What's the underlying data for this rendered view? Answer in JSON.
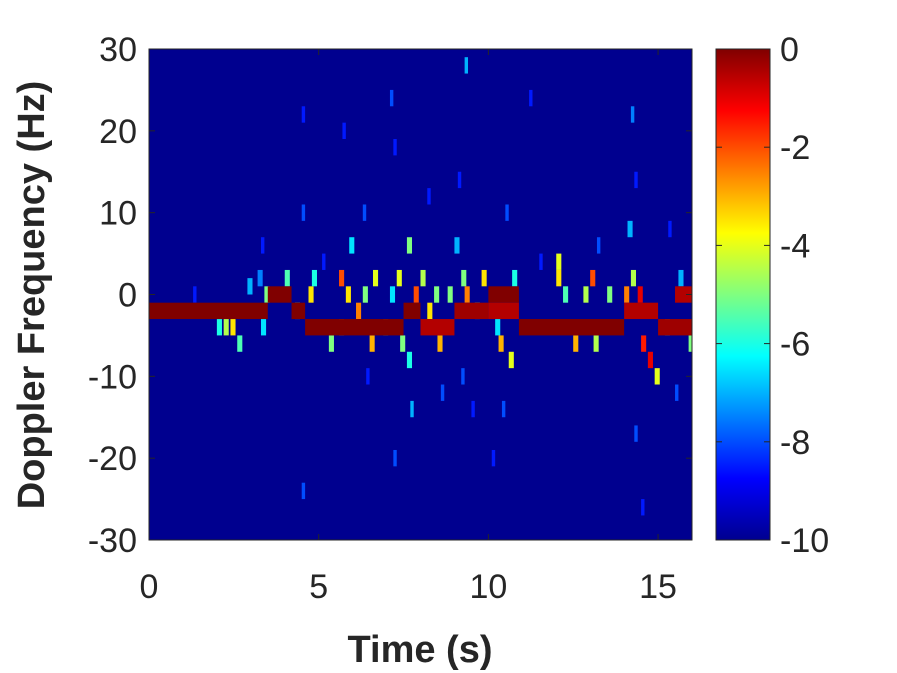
{
  "chart_data": {
    "type": "heatmap",
    "title": "",
    "xlabel": "Time (s)",
    "ylabel": "Doppler Frequency (Hz)",
    "xlim": [
      0,
      16
    ],
    "ylim": [
      -30,
      30
    ],
    "xticks": [
      0,
      5,
      10,
      15
    ],
    "xtick_labels": [
      "0",
      "5",
      "10",
      "15"
    ],
    "yticks": [
      30,
      20,
      10,
      0,
      -10,
      -20,
      -30
    ],
    "ytick_labels": [
      "30",
      "20",
      "10",
      "0",
      "-10",
      "-20",
      "-30"
    ],
    "colormap": "jet",
    "color_range": [
      -10,
      0
    ],
    "colorbar_ticks": [
      0,
      -2,
      -4,
      -6,
      -8,
      -10
    ],
    "colorbar_tick_labels": [
      "0",
      "-2",
      "-4",
      "-6",
      "-8",
      "-10"
    ],
    "background_value": -10,
    "bands": [
      {
        "t": [
          0,
          3.5
        ],
        "f": [
          -3,
          -1
        ],
        "value": 0
      },
      {
        "t": [
          3.5,
          4.2
        ],
        "f": [
          -1,
          1
        ],
        "value": 0
      },
      {
        "t": [
          4.2,
          4.6
        ],
        "f": [
          -3,
          -1
        ],
        "value": 0
      },
      {
        "t": [
          4.6,
          7.5
        ],
        "f": [
          -5,
          -3
        ],
        "value": 0
      },
      {
        "t": [
          7.5,
          8.0
        ],
        "f": [
          -3,
          -1
        ],
        "value": 0
      },
      {
        "t": [
          8.0,
          9.0
        ],
        "f": [
          -5,
          -3
        ],
        "value": -0.5
      },
      {
        "t": [
          9.0,
          10.0
        ],
        "f": [
          -3,
          -1
        ],
        "value": -0.3
      },
      {
        "t": [
          10.0,
          10.9
        ],
        "f": [
          -1,
          1
        ],
        "value": 0
      },
      {
        "t": [
          10.0,
          10.9
        ],
        "f": [
          -3,
          -1
        ],
        "value": -0.5
      },
      {
        "t": [
          10.9,
          14.0
        ],
        "f": [
          -5,
          -3
        ],
        "value": 0
      },
      {
        "t": [
          14.0,
          15.0
        ],
        "f": [
          -3,
          -1
        ],
        "value": -0.5
      },
      {
        "t": [
          15.0,
          16.0
        ],
        "f": [
          -5,
          -3
        ],
        "value": -0.3
      },
      {
        "t": [
          15.5,
          16.0
        ],
        "f": [
          -1,
          1
        ],
        "value": -0.5
      }
    ],
    "scatter_cells": [
      {
        "t": 2.0,
        "f": -4,
        "value": -6
      },
      {
        "t": 2.2,
        "f": -4,
        "value": -4.5
      },
      {
        "t": 2.4,
        "f": -4,
        "value": -3.5
      },
      {
        "t": 2.6,
        "f": -6,
        "value": -5.5
      },
      {
        "t": 2.9,
        "f": 1,
        "value": -7
      },
      {
        "t": 3.2,
        "f": 2,
        "value": -7.5
      },
      {
        "t": 3.3,
        "f": -4,
        "value": -6.5
      },
      {
        "t": 3.4,
        "f": 0,
        "value": -5
      },
      {
        "t": 4.0,
        "f": 2,
        "value": -5.5
      },
      {
        "t": 4.3,
        "f": -2,
        "value": -4
      },
      {
        "t": 4.7,
        "f": 0,
        "value": -3.5
      },
      {
        "t": 4.8,
        "f": 2,
        "value": -6
      },
      {
        "t": 5.3,
        "f": -6,
        "value": -5
      },
      {
        "t": 5.6,
        "f": 2,
        "value": -2
      },
      {
        "t": 5.6,
        "f": -4,
        "value": -3
      },
      {
        "t": 5.8,
        "f": 0,
        "value": -3.5
      },
      {
        "t": 5.9,
        "f": 6,
        "value": -6.5
      },
      {
        "t": 6.1,
        "f": -2,
        "value": -2.5
      },
      {
        "t": 6.3,
        "f": 0,
        "value": -5
      },
      {
        "t": 6.5,
        "f": -6,
        "value": -3
      },
      {
        "t": 6.6,
        "f": 2,
        "value": -4
      },
      {
        "t": 6.9,
        "f": -4,
        "value": -4.5
      },
      {
        "t": 7.1,
        "f": 0,
        "value": -6.5
      },
      {
        "t": 7.3,
        "f": 2,
        "value": -4
      },
      {
        "t": 7.4,
        "f": -6,
        "value": -5
      },
      {
        "t": 7.6,
        "f": -8,
        "value": -6
      },
      {
        "t": 7.6,
        "f": 6,
        "value": -5
      },
      {
        "t": 7.8,
        "f": 0,
        "value": -2
      },
      {
        "t": 8.0,
        "f": 2,
        "value": -4.5
      },
      {
        "t": 8.2,
        "f": -2,
        "value": -3.5
      },
      {
        "t": 8.4,
        "f": 0,
        "value": -5
      },
      {
        "t": 8.5,
        "f": -6,
        "value": -3
      },
      {
        "t": 8.8,
        "f": 0,
        "value": -5
      },
      {
        "t": 9.0,
        "f": 6,
        "value": -7
      },
      {
        "t": 9.2,
        "f": 2,
        "value": -5
      },
      {
        "t": 9.3,
        "f": 0,
        "value": -2.5
      },
      {
        "t": 9.6,
        "f": -2,
        "value": -4
      },
      {
        "t": 9.8,
        "f": 2,
        "value": -3.5
      },
      {
        "t": 10.2,
        "f": -4,
        "value": -6.5
      },
      {
        "t": 10.3,
        "f": -6,
        "value": -3
      },
      {
        "t": 10.6,
        "f": -8,
        "value": -4
      },
      {
        "t": 10.7,
        "f": 2,
        "value": -6
      },
      {
        "t": 12.0,
        "f": 4,
        "value": -4
      },
      {
        "t": 12.0,
        "f": 2,
        "value": -3.5
      },
      {
        "t": 12.2,
        "f": 0,
        "value": -5.5
      },
      {
        "t": 12.5,
        "f": -6,
        "value": -3
      },
      {
        "t": 12.8,
        "f": 0,
        "value": -4.5
      },
      {
        "t": 13.0,
        "f": 2,
        "value": -2
      },
      {
        "t": 13.1,
        "f": -6,
        "value": -4.5
      },
      {
        "t": 13.5,
        "f": 0,
        "value": -5
      },
      {
        "t": 14.0,
        "f": 0,
        "value": -2.5
      },
      {
        "t": 14.1,
        "f": 8,
        "value": -7
      },
      {
        "t": 14.2,
        "f": 2,
        "value": -4.5
      },
      {
        "t": 14.4,
        "f": 0,
        "value": -1
      },
      {
        "t": 14.5,
        "f": -6,
        "value": -1.5
      },
      {
        "t": 14.7,
        "f": -8,
        "value": -1
      },
      {
        "t": 14.9,
        "f": -10,
        "value": -4
      },
      {
        "t": 15.2,
        "f": -4,
        "value": -5.5
      },
      {
        "t": 15.6,
        "f": 2,
        "value": -7
      },
      {
        "t": 15.9,
        "f": -6,
        "value": -5
      }
    ],
    "faint_streaks": [
      {
        "t": 1.3,
        "f": 0,
        "value": -8.5
      },
      {
        "t": 3.3,
        "f": 6,
        "value": -8.5
      },
      {
        "t": 4.5,
        "f": 10,
        "value": -8
      },
      {
        "t": 4.5,
        "f": 22,
        "value": -8.5
      },
      {
        "t": 4.5,
        "f": -24,
        "value": -8
      },
      {
        "t": 5.1,
        "f": 4,
        "value": -8.5
      },
      {
        "t": 5.7,
        "f": 20,
        "value": -8.5
      },
      {
        "t": 6.3,
        "f": 10,
        "value": -8
      },
      {
        "t": 6.4,
        "f": -10,
        "value": -8.5
      },
      {
        "t": 7.1,
        "f": 24,
        "value": -8
      },
      {
        "t": 7.2,
        "f": 18,
        "value": -8.5
      },
      {
        "t": 7.2,
        "f": -20,
        "value": -8
      },
      {
        "t": 7.7,
        "f": -14,
        "value": -7
      },
      {
        "t": 8.2,
        "f": 12,
        "value": -8.5
      },
      {
        "t": 8.6,
        "f": -12,
        "value": -8
      },
      {
        "t": 9.1,
        "f": 14,
        "value": -8.5
      },
      {
        "t": 9.2,
        "f": -10,
        "value": -8
      },
      {
        "t": 9.3,
        "f": 28,
        "value": -7
      },
      {
        "t": 9.5,
        "f": -14,
        "value": -8.5
      },
      {
        "t": 10.1,
        "f": -20,
        "value": -8.5
      },
      {
        "t": 10.4,
        "f": -14,
        "value": -8
      },
      {
        "t": 10.5,
        "f": 10,
        "value": -8
      },
      {
        "t": 11.2,
        "f": 24,
        "value": -8.5
      },
      {
        "t": 11.5,
        "f": 4,
        "value": -8.5
      },
      {
        "t": 13.2,
        "f": 6,
        "value": -8
      },
      {
        "t": 14.2,
        "f": 22,
        "value": -7.5
      },
      {
        "t": 14.3,
        "f": 14,
        "value": -8.5
      },
      {
        "t": 14.3,
        "f": -17,
        "value": -8
      },
      {
        "t": 14.5,
        "f": -26,
        "value": -8.5
      },
      {
        "t": 15.3,
        "f": 8,
        "value": -8.5
      },
      {
        "t": 15.5,
        "f": -12,
        "value": -8
      }
    ]
  }
}
